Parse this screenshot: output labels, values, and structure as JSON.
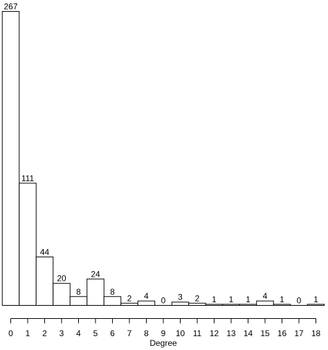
{
  "chart_data": {
    "type": "bar",
    "title": "",
    "xlabel": "Degree",
    "ylabel": "",
    "categories": [
      "0",
      "1",
      "2",
      "3",
      "4",
      "5",
      "6",
      "7",
      "8",
      "9",
      "10",
      "11",
      "12",
      "13",
      "14",
      "15",
      "16",
      "17",
      "18"
    ],
    "values": [
      267,
      111,
      44,
      20,
      8,
      24,
      8,
      2,
      4,
      0,
      3,
      2,
      1,
      1,
      1,
      4,
      1,
      0,
      1
    ],
    "ylim": [
      0,
      267
    ],
    "grid": false,
    "legend": "none",
    "bar_fill": "#ffffff",
    "bar_stroke": "#000000"
  }
}
